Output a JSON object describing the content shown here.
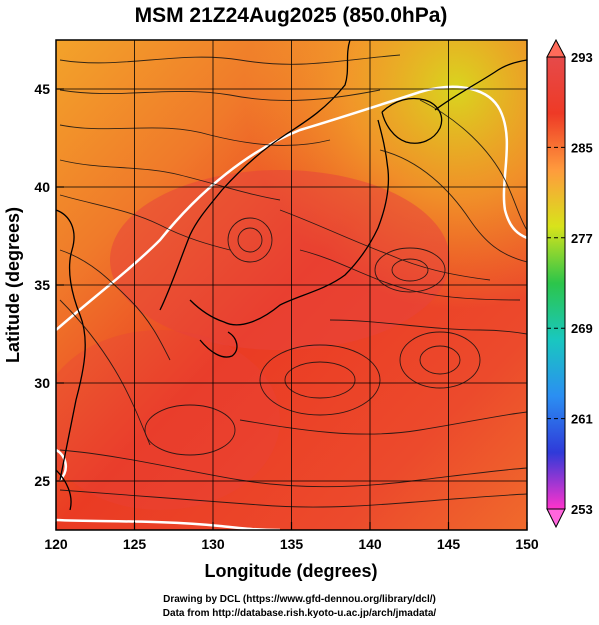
{
  "title": "MSM 21Z24Aug2025 (850.0hPa)",
  "chart_data": {
    "type": "heatmap",
    "xlabel": "Longitude (degrees)",
    "ylabel": "Latitude  (degrees)",
    "xlim": [
      120,
      150
    ],
    "ylim": [
      22.5,
      47.5
    ],
    "x_ticks": [
      "120",
      "125",
      "130",
      "135",
      "140",
      "145",
      "150"
    ],
    "y_ticks": [
      "25",
      "30",
      "35",
      "40",
      "45"
    ],
    "x_tick_values": [
      120,
      125,
      130,
      135,
      140,
      145,
      150
    ],
    "y_tick_values": [
      25,
      30,
      35,
      40,
      45
    ],
    "grid": true,
    "overlay": "wind streamlines",
    "colorbar": {
      "min": 253,
      "max": 293,
      "ticks": [
        "293",
        "285",
        "277",
        "269",
        "261",
        "253"
      ],
      "tick_values": [
        293,
        285,
        277,
        269,
        261,
        253
      ],
      "stops": [
        "#ff33cc",
        "#2f3ad9",
        "#2b8ff2",
        "#19c7bf",
        "#2cc54a",
        "#d8e31b",
        "#ff9b3d",
        "#ee3a26",
        "#e64a4a"
      ]
    }
  },
  "footer": {
    "line1": "Drawing by DCL (https://www.gfd-dennou.org/library/dcl/)",
    "line2": "Data from http://database.rish.kyoto-u.ac.jp/arch/jmadata/"
  }
}
